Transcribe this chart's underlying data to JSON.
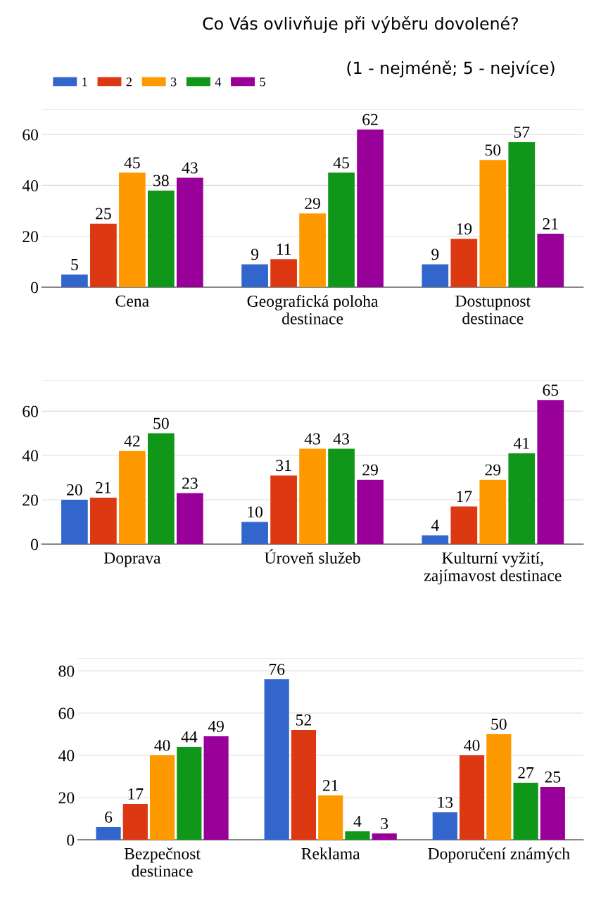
{
  "chart_data": [
    {
      "type": "bar",
      "title": "Co Vás ovlivňuje při výběru dovolené?",
      "subtitle": "(1 - nejméně; 5 - nejvíce)",
      "categories": [
        "Cena",
        "Geografická poloha\ndestinace",
        "Dostupnost\ndestinace"
      ],
      "ylim": [
        0,
        70
      ],
      "yticks": [
        0,
        20,
        40,
        60,
        {
          "value": 70,
          "label": null
        }
      ],
      "grid": "y",
      "legend": "top left",
      "data_labels": true,
      "series": [
        {
          "name": "1",
          "color": "#3366cc",
          "values": [
            5,
            9,
            9
          ]
        },
        {
          "name": "2",
          "color": "#dc3912",
          "values": [
            25,
            11,
            19
          ]
        },
        {
          "name": "3",
          "color": "#ff9900",
          "values": [
            45,
            29,
            50
          ]
        },
        {
          "name": "4",
          "color": "#109618",
          "values": [
            38,
            45,
            57
          ]
        },
        {
          "name": "5",
          "color": "#990099",
          "values": [
            43,
            62,
            21
          ]
        }
      ]
    },
    {
      "type": "bar",
      "categories": [
        "Doprava",
        "Úroveň služeb",
        "Kulturní vyžití,\nzajímavost destinace"
      ],
      "ylim": [
        0,
        74
      ],
      "yticks": [
        0,
        20,
        40,
        60,
        {
          "value": 74,
          "label": null
        }
      ],
      "grid": "y",
      "data_labels": true,
      "series": [
        {
          "color": "#3366cc",
          "values": [
            20,
            10,
            4
          ]
        },
        {
          "color": "#dc3912",
          "values": [
            21,
            31,
            17
          ]
        },
        {
          "color": "#ff9900",
          "values": [
            42,
            43,
            29
          ]
        },
        {
          "color": "#109618",
          "values": [
            50,
            43,
            41
          ]
        },
        {
          "color": "#990099",
          "values": [
            23,
            29,
            65
          ]
        }
      ]
    },
    {
      "type": "bar",
      "categories": [
        "Bezpečnost\ndestinace",
        "Reklama",
        "Doporučení známých"
      ],
      "ylim": [
        0,
        86
      ],
      "yticks": [
        0,
        20,
        40,
        60,
        80,
        {
          "value": 86,
          "label": null
        }
      ],
      "grid": "y",
      "data_labels": true,
      "series": [
        {
          "color": "#3366cc",
          "values": [
            6,
            76,
            13
          ]
        },
        {
          "color": "#dc3912",
          "values": [
            17,
            52,
            40
          ]
        },
        {
          "color": "#ff9900",
          "values": [
            40,
            21,
            50
          ]
        },
        {
          "color": "#109618",
          "values": [
            44,
            4,
            27
          ]
        },
        {
          "color": "#990099",
          "values": [
            49,
            3,
            25
          ]
        }
      ]
    }
  ]
}
